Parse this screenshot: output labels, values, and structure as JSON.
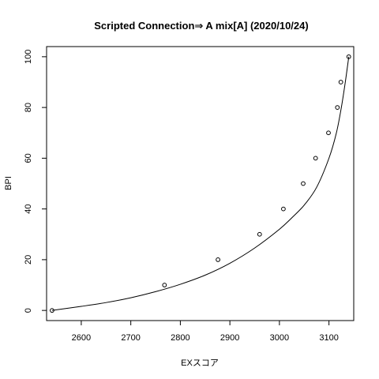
{
  "chart_data": {
    "type": "scatter",
    "title": "Scripted Connection⇒ A mix[A] (2020/10/24)",
    "xlabel": "EXスコア",
    "ylabel": "BPI",
    "xlim": [
      2530,
      3150
    ],
    "ylim": [
      -4,
      104
    ],
    "x_ticks": [
      2600,
      2700,
      2800,
      2900,
      3000,
      3100
    ],
    "y_ticks": [
      0,
      20,
      40,
      60,
      80,
      100
    ],
    "grid": false,
    "legend": "none",
    "points": [
      {
        "x": 2541,
        "y": 0
      },
      {
        "x": 2768,
        "y": 10
      },
      {
        "x": 2876,
        "y": 20
      },
      {
        "x": 2960,
        "y": 30
      },
      {
        "x": 3008,
        "y": 40
      },
      {
        "x": 3048,
        "y": 50
      },
      {
        "x": 3073,
        "y": 60
      },
      {
        "x": 3099,
        "y": 70
      },
      {
        "x": 3117,
        "y": 80
      },
      {
        "x": 3124,
        "y": 90
      },
      {
        "x": 3140,
        "y": 100
      }
    ],
    "curve": [
      {
        "x": 2541,
        "y": 0
      },
      {
        "x": 2600,
        "y": 1.6
      },
      {
        "x": 2650,
        "y": 3.1
      },
      {
        "x": 2700,
        "y": 5
      },
      {
        "x": 2750,
        "y": 7.4
      },
      {
        "x": 2800,
        "y": 10.3
      },
      {
        "x": 2850,
        "y": 13.9
      },
      {
        "x": 2900,
        "y": 18.6
      },
      {
        "x": 2950,
        "y": 24.6
      },
      {
        "x": 3000,
        "y": 32
      },
      {
        "x": 3025,
        "y": 36.5
      },
      {
        "x": 3050,
        "y": 41.5
      },
      {
        "x": 3075,
        "y": 48.5
      },
      {
        "x": 3100,
        "y": 60
      },
      {
        "x": 3115,
        "y": 70
      },
      {
        "x": 3125,
        "y": 80
      },
      {
        "x": 3133,
        "y": 90
      },
      {
        "x": 3140,
        "y": 100
      }
    ]
  }
}
